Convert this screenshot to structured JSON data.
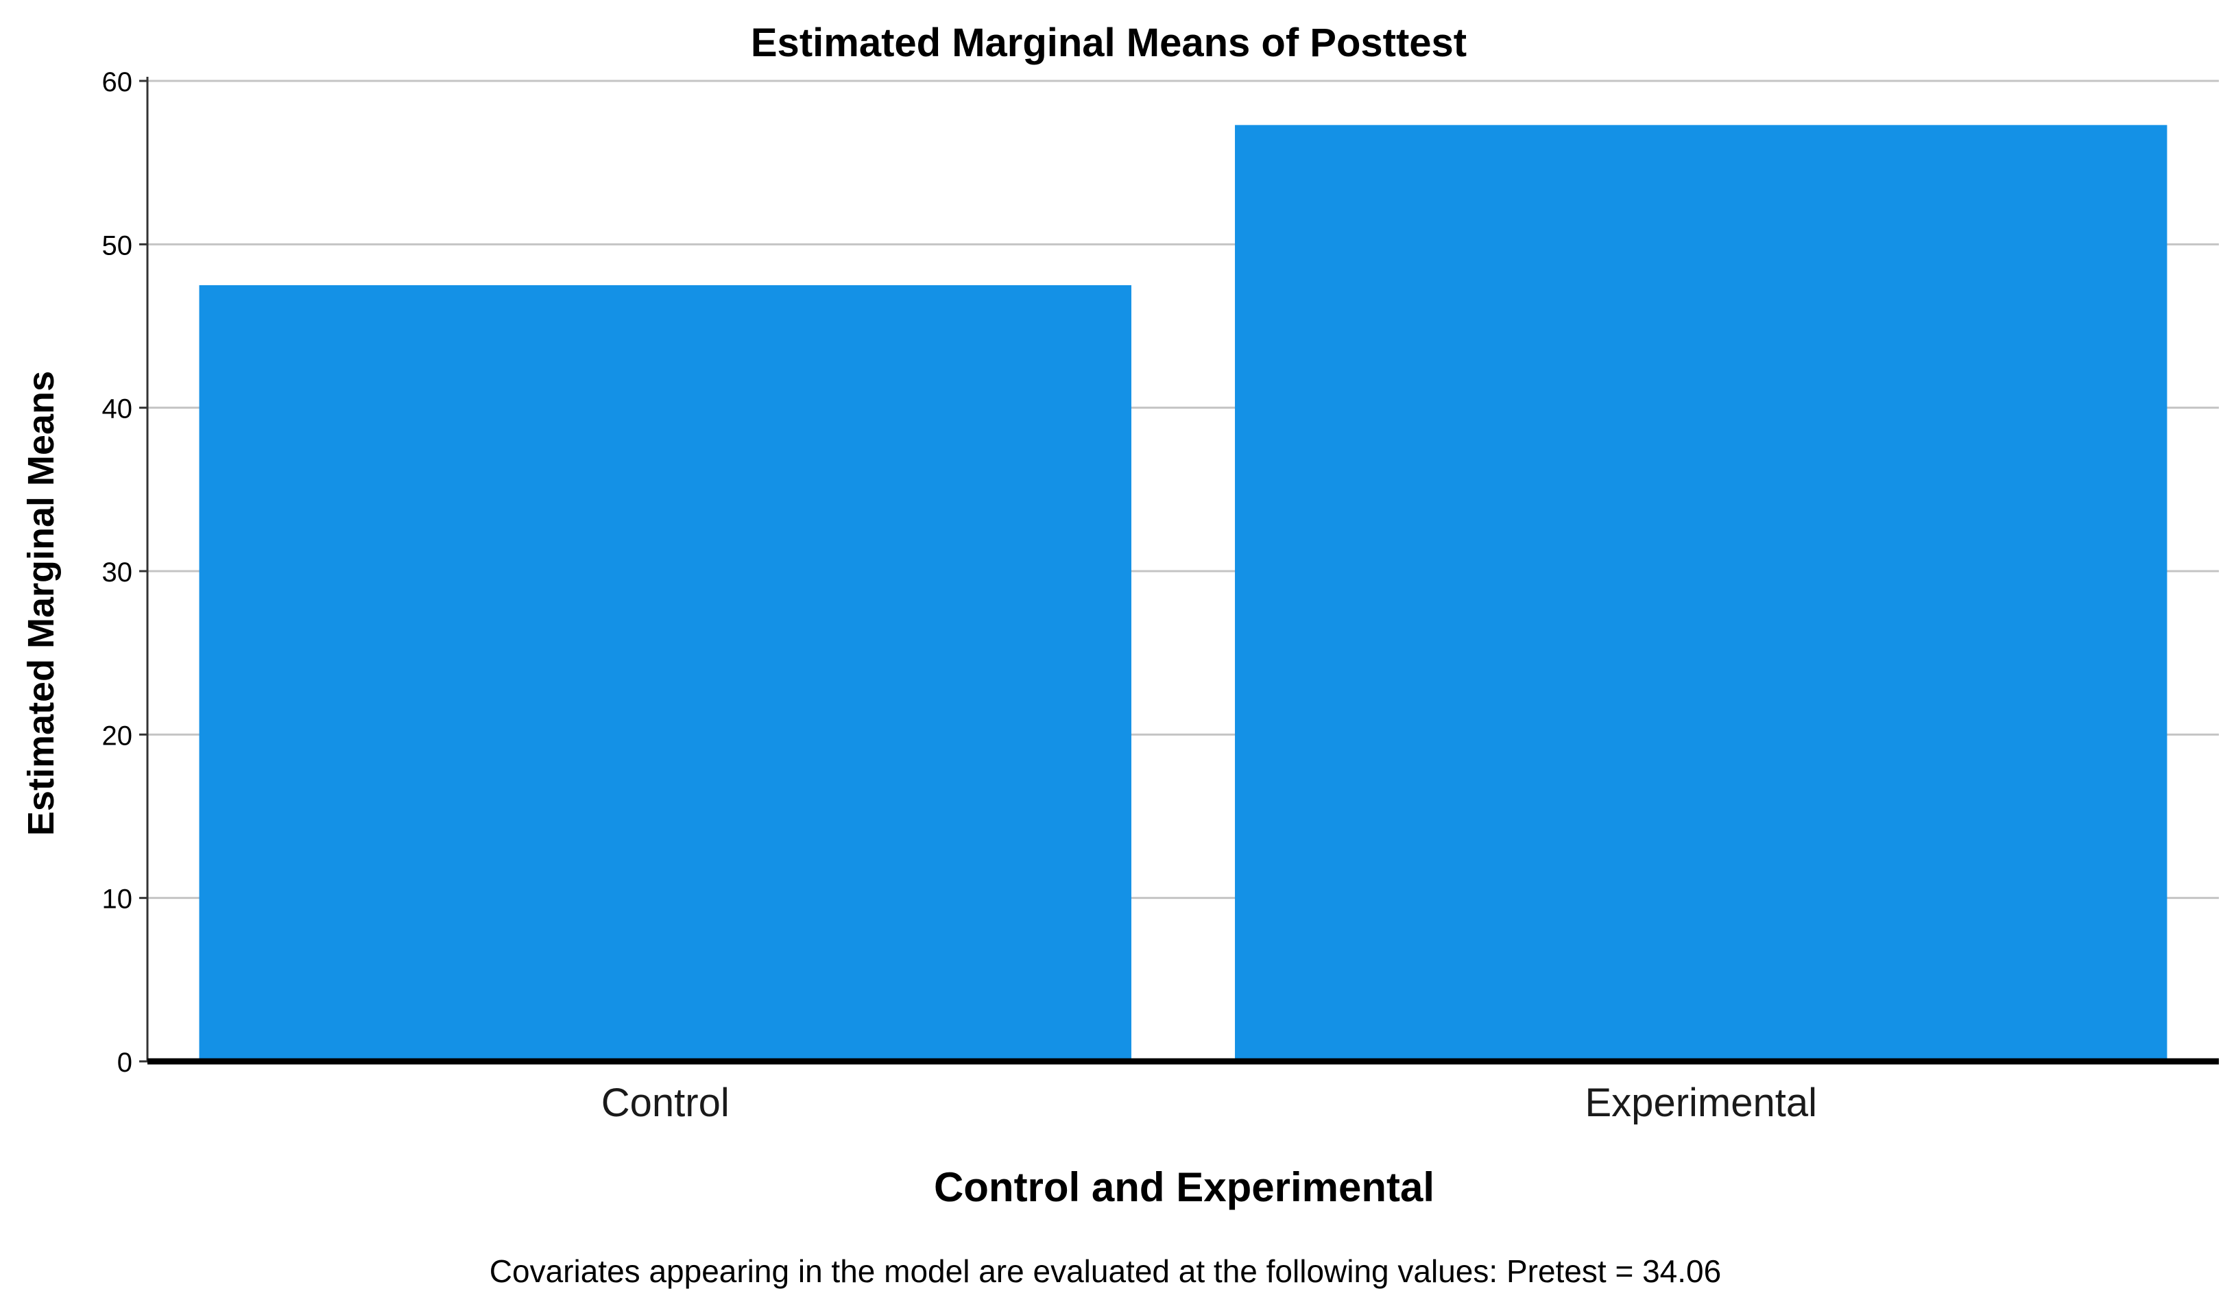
{
  "chart_data": {
    "type": "bar",
    "title": "Estimated Marginal Means of Posttest",
    "xlabel": "Control and Experimental",
    "ylabel": "Estimated Marginal Means",
    "categories": [
      "Control",
      "Experimental"
    ],
    "values": [
      47.5,
      57.3
    ],
    "ylim": [
      0,
      60
    ],
    "yticks": [
      0,
      10,
      20,
      30,
      40,
      50,
      60
    ],
    "grid": true,
    "bar_color": "#1491e6",
    "footnote": "Covariates appearing in the model are evaluated at the following values: Pretest = 34.06"
  }
}
